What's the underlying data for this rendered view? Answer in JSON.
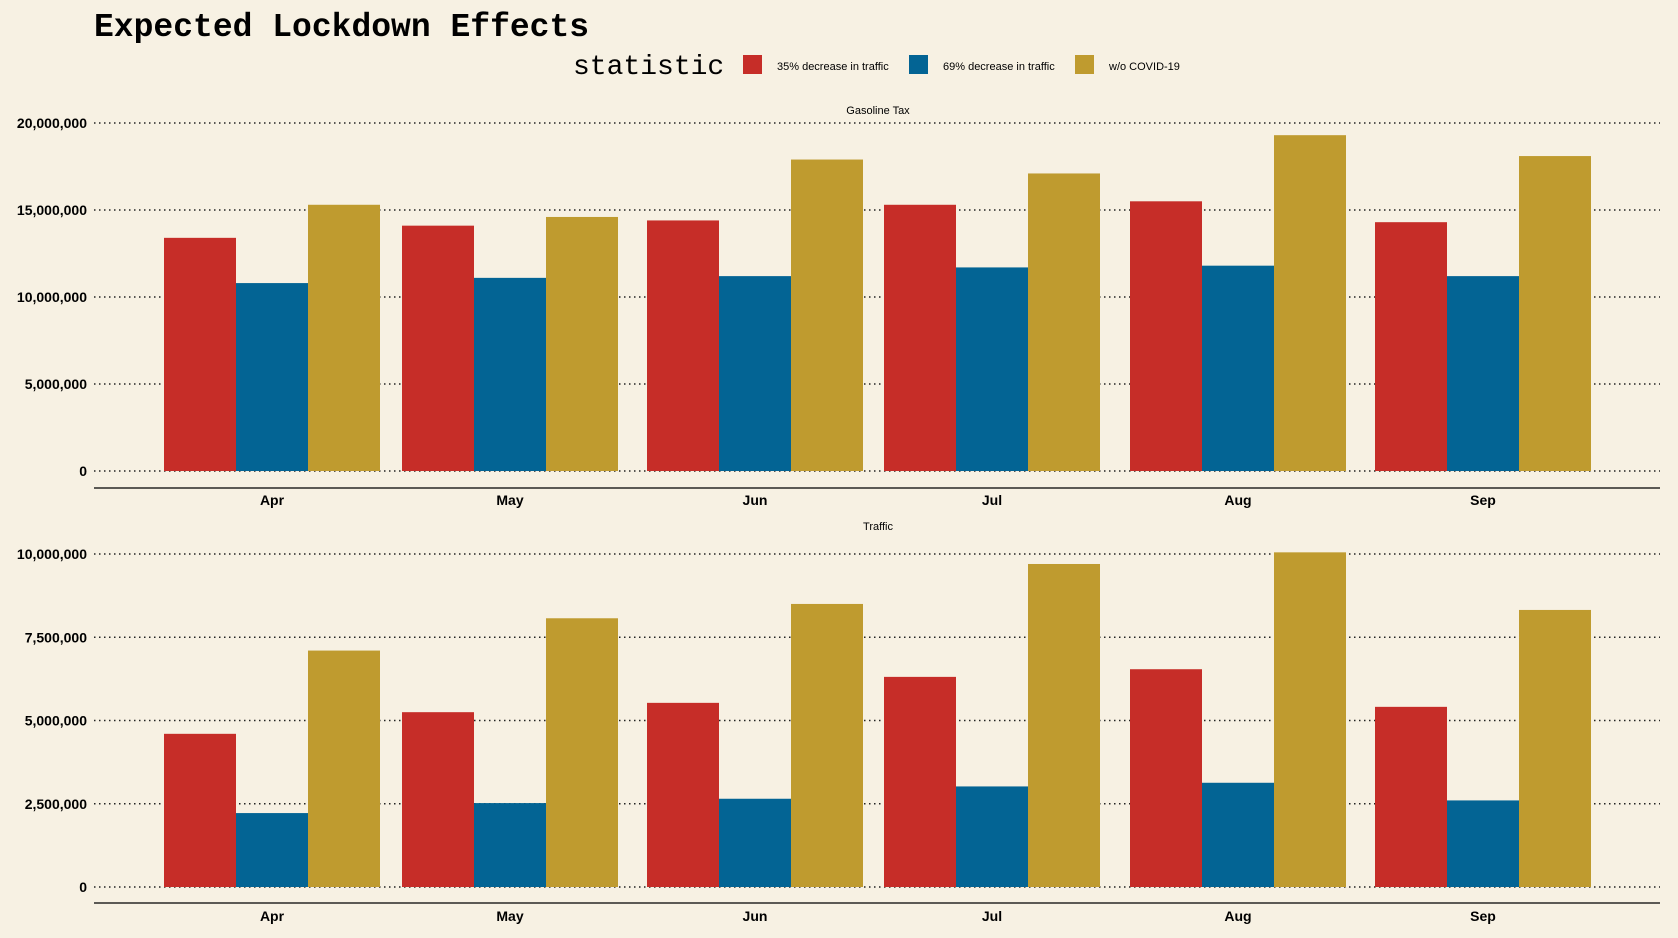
{
  "title": "Expected Lockdown Effects",
  "legend": {
    "title": "statistic",
    "items": [
      {
        "label": "35% decrease in traffic",
        "color": "#c62d28"
      },
      {
        "label": "69% decrease in traffic",
        "color": "#036494"
      },
      {
        "label": "w/o COVID-19",
        "color": "#bf9b2f"
      }
    ]
  },
  "chart_data": [
    {
      "type": "bar",
      "title": "Gasoline Tax",
      "categories": [
        "Apr",
        "May",
        "Jun",
        "Jul",
        "Aug",
        "Sep"
      ],
      "ylim": [
        0,
        20000000
      ],
      "yticks": [
        0,
        5000000,
        10000000,
        15000000,
        20000000
      ],
      "ytick_labels": [
        "0",
        "5,000,000",
        "10,000,000",
        "15,000,000",
        "20,000,000"
      ],
      "grid": true,
      "series": [
        {
          "name": "35% decrease in traffic",
          "values": [
            13400000,
            14100000,
            14400000,
            15300000,
            15500000,
            14300000
          ]
        },
        {
          "name": "69% decrease in traffic",
          "values": [
            10800000,
            11100000,
            11200000,
            11700000,
            11800000,
            11200000
          ]
        },
        {
          "name": "w/o COVID-19",
          "values": [
            15300000,
            14600000,
            17900000,
            17100000,
            19300000,
            18100000
          ]
        }
      ]
    },
    {
      "type": "bar",
      "title": "Traffic",
      "categories": [
        "Apr",
        "May",
        "Jun",
        "Jul",
        "Aug",
        "Sep"
      ],
      "ylim": [
        0,
        10000000
      ],
      "yticks": [
        0,
        2500000,
        5000000,
        7500000,
        10000000
      ],
      "ytick_labels": [
        "0",
        "2,500,000",
        "5,000,000",
        "7,500,000",
        "10,000,000"
      ],
      "grid": true,
      "series": [
        {
          "name": "35% decrease in traffic",
          "values": [
            4600000,
            5250000,
            5530000,
            6310000,
            6540000,
            5410000
          ]
        },
        {
          "name": "69% decrease in traffic",
          "values": [
            2220000,
            2520000,
            2650000,
            3020000,
            3130000,
            2600000
          ]
        },
        {
          "name": "w/o COVID-19",
          "values": [
            7100000,
            8070000,
            8500000,
            9700000,
            10050000,
            8320000
          ]
        }
      ]
    }
  ]
}
